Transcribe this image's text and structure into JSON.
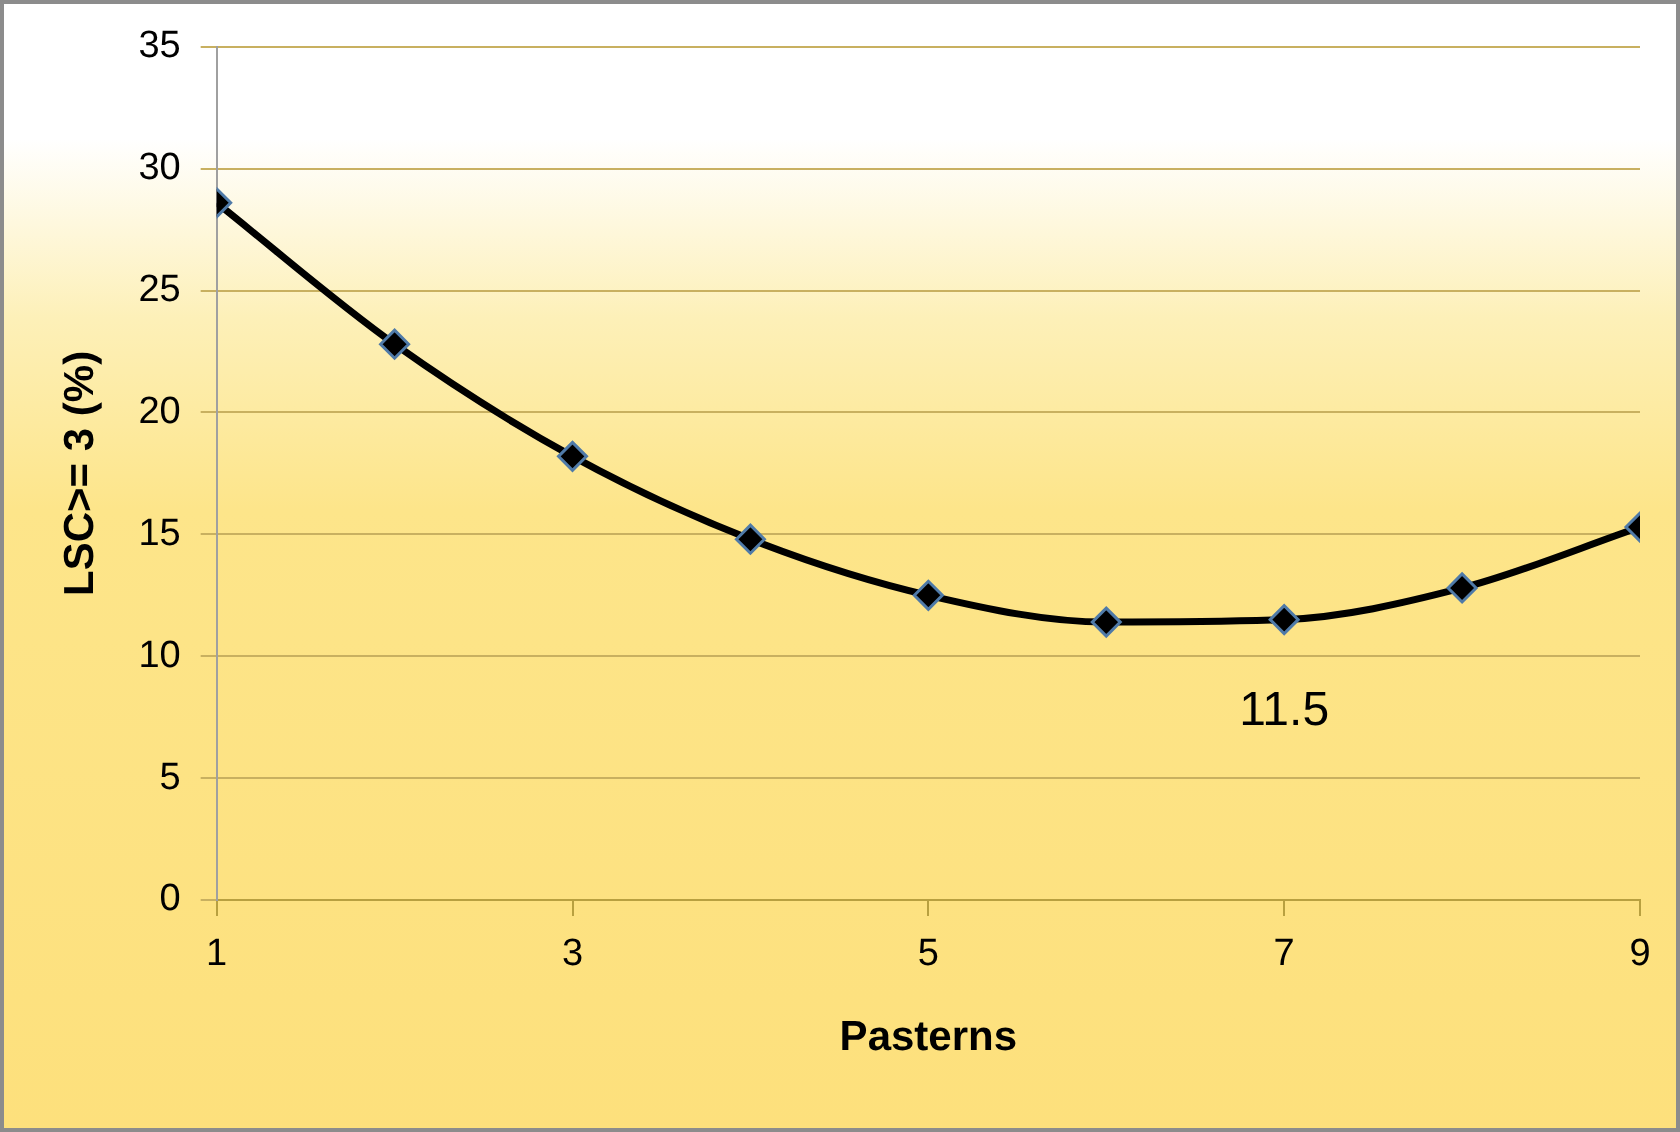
{
  "chart_data": {
    "type": "line",
    "xlabel": "Pasterns",
    "ylabel": "LSC>= 3 (%)",
    "x": [
      1,
      2,
      3,
      4,
      5,
      6,
      7,
      8,
      9
    ],
    "series": [
      {
        "color": "#000000",
        "values": [
          28.6,
          22.8,
          18.2,
          14.8,
          12.5,
          11.4,
          11.5,
          12.8,
          15.3
        ]
      }
    ],
    "xlim": [
      1,
      9
    ],
    "xticks": [
      1,
      3,
      5,
      7,
      9
    ],
    "ylim": [
      0,
      35
    ],
    "yticks": [
      0,
      5,
      10,
      15,
      20,
      25,
      30,
      35
    ],
    "grid": "y",
    "legend": false,
    "marker": "diamond",
    "line_style": "solid",
    "annotations": [
      {
        "text": "11.5",
        "x": 7,
        "y": 11.5
      }
    ]
  }
}
